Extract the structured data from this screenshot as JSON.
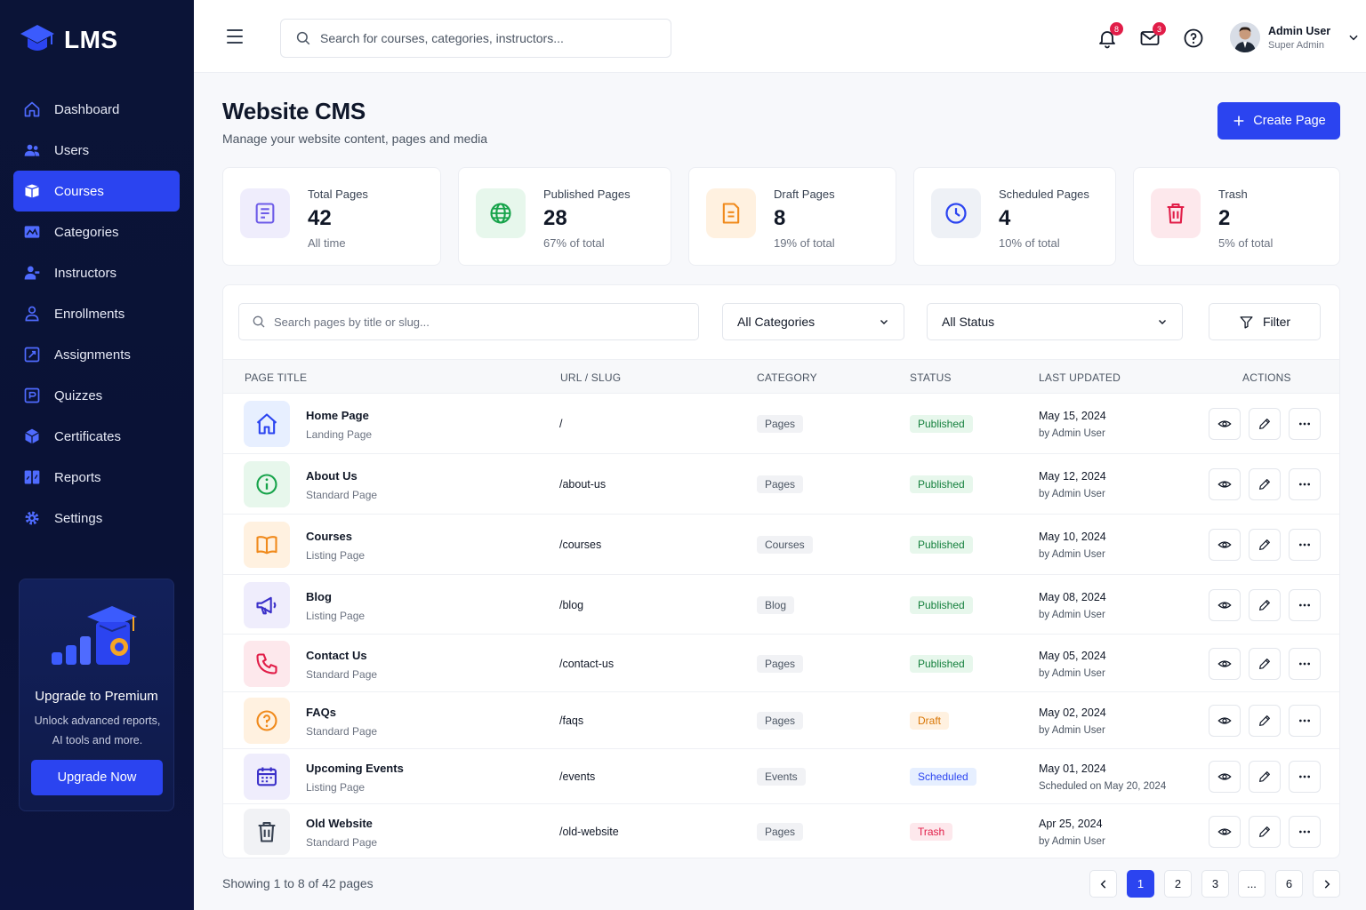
{
  "app": {
    "name": "LMS"
  },
  "sidebar": {
    "items": [
      {
        "label": "Dashboard",
        "icon": "home-icon"
      },
      {
        "label": "Users",
        "icon": "users-icon"
      },
      {
        "label": "Courses",
        "icon": "courses-icon",
        "active": true
      },
      {
        "label": "Categories",
        "icon": "categories-icon"
      },
      {
        "label": "Instructors",
        "icon": "instructors-icon"
      },
      {
        "label": "Enrollments",
        "icon": "enrollments-icon"
      },
      {
        "label": "Assignments",
        "icon": "assignments-icon"
      },
      {
        "label": "Quizzes",
        "icon": "quizzes-icon"
      },
      {
        "label": "Certificates",
        "icon": "certificates-icon"
      },
      {
        "label": "Reports",
        "icon": "reports-icon"
      },
      {
        "label": "Settings",
        "icon": "settings-icon"
      }
    ],
    "promo": {
      "title": "Upgrade to Premium",
      "text": "Unlock advanced reports, AI tools and more.",
      "button": "Upgrade Now"
    }
  },
  "header": {
    "search_placeholder": "Search for courses, categories, instructors...",
    "notifications_count": "8",
    "messages_count": "3",
    "user_name": "Admin User",
    "user_role": "Super Admin"
  },
  "page": {
    "title": "Website CMS",
    "subtitle": "Manage your website content, pages and media",
    "create_button": "Create Page"
  },
  "stats": [
    {
      "label": "Total Pages",
      "value": "42",
      "note": "All time",
      "color": "#6d5be8"
    },
    {
      "label": "Published Pages",
      "value": "28",
      "note": "67% of total",
      "color": "#16a34a"
    },
    {
      "label": "Draft Pages",
      "value": "8",
      "note": "19% of total",
      "color": "#f08a1c"
    },
    {
      "label": "Scheduled Pages",
      "value": "4",
      "note": "10% of total",
      "color": "#2b44f0"
    },
    {
      "label": "Trash",
      "value": "2",
      "note": "5% of total",
      "color": "#e11d48"
    }
  ],
  "filters": {
    "search_placeholder": "Search pages by title or slug...",
    "category": "All Categories",
    "status": "All Status",
    "filter_button": "Filter"
  },
  "table": {
    "headers": [
      "PAGE TITLE",
      "URL / SLUG",
      "CATEGORY",
      "STATUS",
      "LAST UPDATED",
      "ACTIONS"
    ],
    "rows": [
      {
        "title": "Home Page",
        "type": "Landing Page",
        "slug": "/",
        "category": "Pages",
        "status": "Published",
        "date": "May 15, 2024",
        "by": "by Admin User",
        "icon": "home-icon"
      },
      {
        "title": "About Us",
        "type": "Standard Page",
        "slug": "/about-us",
        "category": "Pages",
        "status": "Published",
        "date": "May 12, 2024",
        "by": "by Admin User",
        "icon": "info-icon"
      },
      {
        "title": "Courses",
        "type": "Listing Page",
        "slug": "/courses",
        "category": "Courses",
        "status": "Published",
        "date": "May 10, 2024",
        "by": "by Admin User",
        "icon": "book-icon"
      },
      {
        "title": "Blog",
        "type": "Listing Page",
        "slug": "/blog",
        "category": "Blog",
        "status": "Published",
        "date": "May 08, 2024",
        "by": "by Admin User",
        "icon": "megaphone-icon"
      },
      {
        "title": "Contact Us",
        "type": "Standard Page",
        "slug": "/contact-us",
        "category": "Pages",
        "status": "Published",
        "date": "May 05, 2024",
        "by": "by Admin User",
        "icon": "phone-icon"
      },
      {
        "title": "FAQs",
        "type": "Standard Page",
        "slug": "/faqs",
        "category": "Pages",
        "status": "Draft",
        "date": "May 02, 2024",
        "by": "by Admin User",
        "icon": "question-icon"
      },
      {
        "title": "Upcoming Events",
        "type": "Listing Page",
        "slug": "/events",
        "category": "Events",
        "status": "Scheduled",
        "date": "May 01, 2024",
        "by": "Scheduled on May 20, 2024",
        "icon": "calendar-icon"
      },
      {
        "title": "Old Website",
        "type": "Standard Page",
        "slug": "/old-website",
        "category": "Pages",
        "status": "Trash",
        "date": "Apr 25, 2024",
        "by": "by Admin User",
        "icon": "trash-icon"
      }
    ]
  },
  "pagination": {
    "showing": "Showing 1 to 8 of 42 pages",
    "pages": [
      "1",
      "2",
      "3",
      "...",
      "6"
    ],
    "current": "1"
  }
}
